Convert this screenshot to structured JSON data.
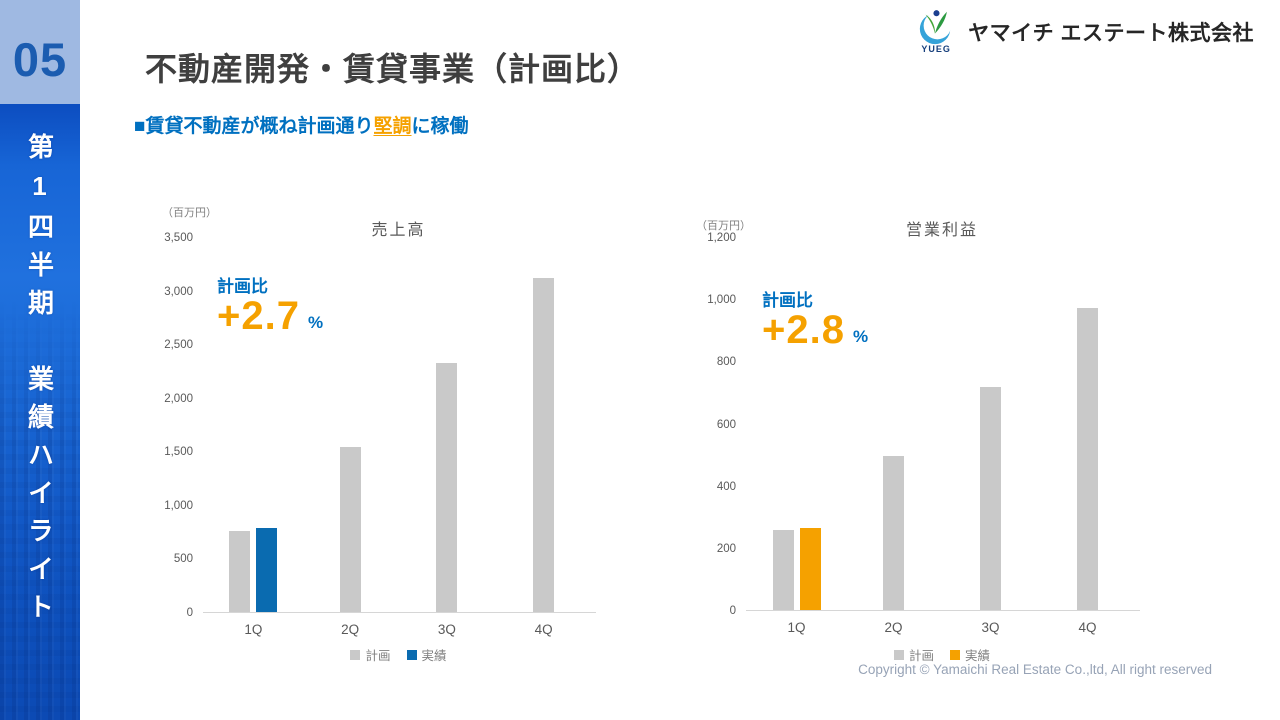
{
  "sidebar": {
    "section_number": "05",
    "vertical_title_line1": "第1四半期",
    "vertical_title_line2": "業績ハイライト"
  },
  "header": {
    "logo_text": "YUEG",
    "company_name": "ヤマイチ エステート株式会社",
    "page_title": "不動産開発・賃貸事業（計画比）",
    "subtitle": {
      "prefix": "■賃貸不動産が概ね計画通り",
      "highlight": "堅調",
      "suffix": "に稼働"
    }
  },
  "footer": {
    "copyright": "Copyright © Yamaichi Real Estate Co.,ltd, All right reserved"
  },
  "colors": {
    "plan_bar": "#C9C9C9",
    "actual_bar_sales": "#0A6BB0",
    "actual_bar_profit": "#F5A100",
    "accent_blue": "#0070C0",
    "accent_orange": "#F5A100",
    "sidebar_light_blue": "#9FB9E2",
    "sidebar_number_blue": "#1B5CB0"
  },
  "chart_data": [
    {
      "type": "bar",
      "title": "売上高",
      "unit_label": "（百万円）",
      "categories": [
        "1Q",
        "2Q",
        "3Q",
        "4Q"
      ],
      "series": [
        {
          "name": "計画",
          "key": "plan",
          "color": "#C9C9C9",
          "values": [
            770,
            1550,
            2330,
            3130
          ]
        },
        {
          "name": "実績",
          "key": "actual",
          "color": "#0A6BB0",
          "values": [
            791,
            null,
            null,
            null
          ]
        }
      ],
      "ylim": [
        0,
        3500
      ],
      "ytick_step": 500,
      "tick_labels": [
        "0",
        "500",
        "1,000",
        "1,500",
        "2,000",
        "2,500",
        "3,000",
        "3,500"
      ],
      "grid": false,
      "legend_position": "bottom",
      "annotation": {
        "label": "計画比",
        "value": "+2.7",
        "suffix": "%"
      }
    },
    {
      "type": "bar",
      "title": "営業利益",
      "unit_label": "（百万円）",
      "categories": [
        "1Q",
        "2Q",
        "3Q",
        "4Q"
      ],
      "series": [
        {
          "name": "計画",
          "key": "plan",
          "color": "#C9C9C9",
          "values": [
            260,
            500,
            720,
            975
          ]
        },
        {
          "name": "実績",
          "key": "actual",
          "color": "#F5A100",
          "values": [
            267,
            null,
            null,
            null
          ]
        }
      ],
      "ylim": [
        0,
        1200
      ],
      "ytick_step": 200,
      "tick_labels": [
        "0",
        "200",
        "400",
        "600",
        "800",
        "1,000",
        "1,200"
      ],
      "grid": false,
      "legend_position": "bottom",
      "annotation": {
        "label": "計画比",
        "value": "+2.8",
        "suffix": "%"
      }
    }
  ]
}
